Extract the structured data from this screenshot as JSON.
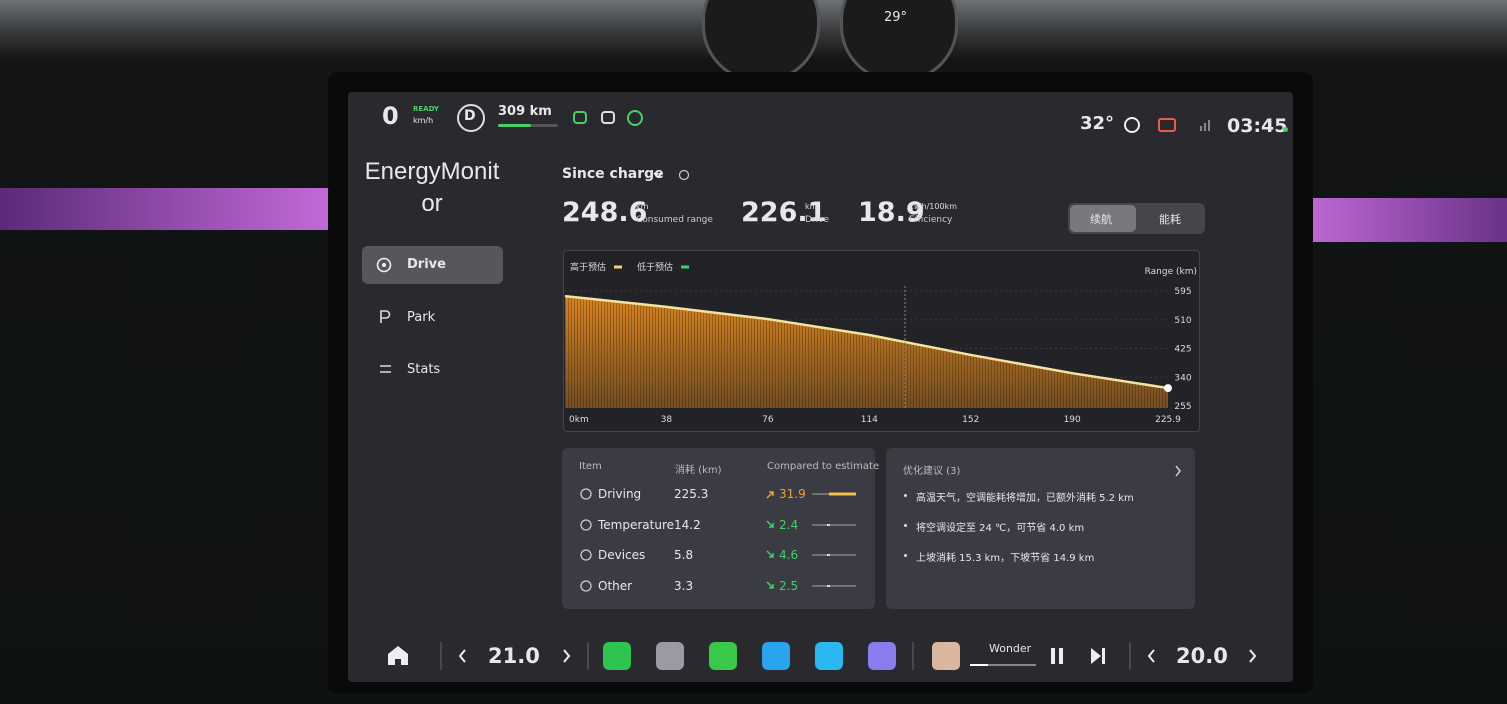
{
  "gauge": {
    "temperature": "29°"
  },
  "status_bar": {
    "speed": "0",
    "ready": "READY",
    "speed_unit": "km/h",
    "gear": "D",
    "range": "309 km",
    "temperature": "32°",
    "time": "03:45"
  },
  "sidebar": {
    "title": "EnergyMonitor",
    "menu": [
      "Drive",
      "Park",
      "Stats"
    ]
  },
  "summary": {
    "period": "Since charge",
    "stats": [
      {
        "value": "248.6",
        "unit": "km",
        "label": "Consumed range"
      },
      {
        "value": "226.1",
        "unit": "km",
        "label": "Drive"
      },
      {
        "value": "18.9",
        "unit": "kWh/100km",
        "label": "Efficiency"
      }
    ],
    "tabs": [
      "续航",
      "能耗"
    ]
  },
  "range_chart": {
    "type": "area",
    "legend": [
      "高于预估",
      "低于预估"
    ],
    "axis_label": "Range (km)",
    "x": [
      0,
      38,
      76,
      114,
      152,
      190,
      225.9
    ],
    "values": [
      580,
      548,
      512,
      465,
      406,
      352,
      308
    ],
    "color": "#d9841f",
    "line_color": "#f3e3a0",
    "xlim": [
      0,
      225.9
    ],
    "ylim": [
      255,
      595
    ],
    "xticks": [
      {
        "value": 0,
        "label": "0km"
      },
      38,
      76,
      114,
      152,
      190,
      225.9
    ],
    "yticks": [
      595,
      510,
      425,
      340,
      255
    ]
  },
  "breakdown": {
    "headers": [
      "Item",
      "消耗 (km)",
      "Compared to estimate"
    ],
    "rows": [
      [
        "Driving",
        "225.3",
        "31.9"
      ],
      [
        "Temperature",
        "14.2",
        "2.4"
      ],
      [
        "Devices",
        "5.8",
        "4.6"
      ],
      [
        "Other",
        "3.3",
        "2.5"
      ]
    ]
  },
  "suggestions": {
    "title": "优化建议 (3)",
    "items": [
      "高温天气，空调能耗将增加，已额外消耗 5.2 km",
      "将空调设定至 24 ℃，可节省 4.0 km",
      "上坡消耗 15.3 km，下坡节省 14.9 km"
    ]
  },
  "dock": {
    "left_temp": "21.0",
    "media": "Wonder",
    "right_temp": "20.0"
  }
}
